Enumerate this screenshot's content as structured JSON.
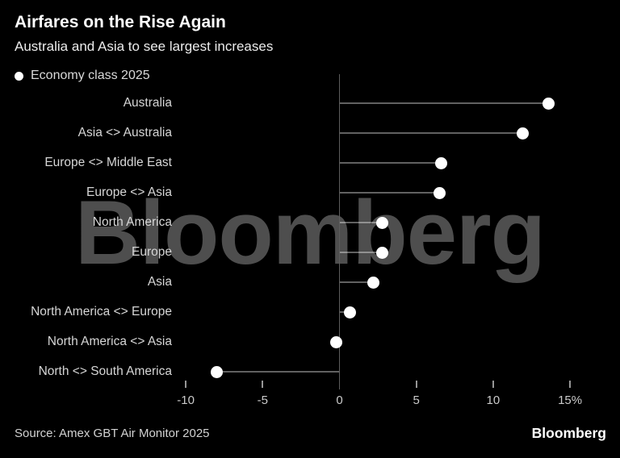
{
  "header": {
    "title": "Airfares on the Rise Again",
    "subtitle": "Australia and Asia to see largest increases"
  },
  "legend": {
    "marker": "dot-icon",
    "label": "Economy class 2025"
  },
  "chart_data": {
    "type": "bar",
    "style": "lollipop-dot",
    "orientation": "horizontal",
    "title": "Airfares on the Rise Again",
    "subtitle": "Australia and Asia to see largest increases",
    "series_name": "Economy class 2025",
    "categories": [
      "Australia",
      "Asia <> Australia",
      "Europe <> Middle East",
      "Europe <> Asia",
      "North America",
      "Europe",
      "Asia",
      "North America <> Europe",
      "North America <> Asia",
      "North <> South America"
    ],
    "values": [
      13.6,
      11.9,
      6.6,
      6.5,
      2.8,
      2.8,
      2.2,
      0.7,
      -0.2,
      -8.0
    ],
    "unit": "%",
    "xlim": [
      -10,
      15
    ],
    "x_ticks": [
      -10,
      -5,
      0,
      5,
      10,
      15
    ],
    "x_tick_labels": [
      "-10",
      "-5",
      "0",
      "5",
      "10",
      "15%"
    ],
    "grid": false,
    "legend_position": "top-left"
  },
  "watermark": "Bloomberg",
  "footer": {
    "source": "Source: Amex GBT Air Monitor 2025",
    "logo": "Bloomberg"
  },
  "colors": {
    "background": "#000000",
    "title_text": "#ffffff",
    "label_text": "#d6d6d6",
    "tick_text": "#cbcbcb",
    "stem": "#616161",
    "dot": "#ffffff",
    "watermark": "#4e4e4e"
  }
}
